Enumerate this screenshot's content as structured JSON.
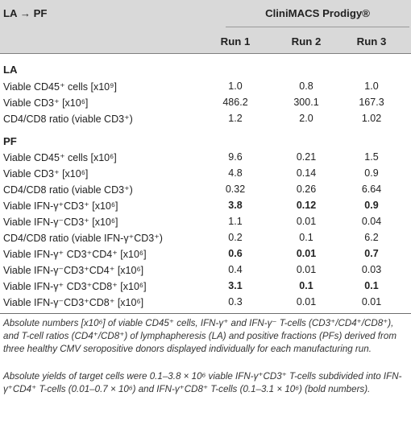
{
  "header": {
    "flow_label": "LA → PF",
    "device": "CliniMACS Prodigy®",
    "runs": [
      "Run 1",
      "Run 2",
      "Run 3"
    ]
  },
  "sections": [
    {
      "name": "LA",
      "rows": [
        {
          "label": "Viable CD45⁺ cells [x10⁹]",
          "values": [
            "1.0",
            "0.8",
            "1.0"
          ],
          "bold": false
        },
        {
          "label": "Viable CD3⁺ [x10⁶]",
          "values": [
            "486.2",
            "300.1",
            "167.3"
          ],
          "bold": false
        },
        {
          "label": "CD4/CD8 ratio (viable CD3⁺)",
          "values": [
            "1.2",
            "2.0",
            "1.02"
          ],
          "bold": false
        }
      ]
    },
    {
      "name": "PF",
      "rows": [
        {
          "label": "Viable CD45⁺ cells [x10⁶]",
          "values": [
            "9.6",
            "0.21",
            "1.5"
          ],
          "bold": false
        },
        {
          "label": "Viable CD3⁺ [x10⁶]",
          "values": [
            "4.8",
            "0.14",
            "0.9"
          ],
          "bold": false
        },
        {
          "label": "CD4/CD8 ratio (viable CD3⁺)",
          "values": [
            "0.32",
            "0.26",
            "6.64"
          ],
          "bold": false
        },
        {
          "label": "Viable IFN-γ⁺CD3⁺ [x10⁶]",
          "values": [
            "3.8",
            "0.12",
            "0.9"
          ],
          "bold": true
        },
        {
          "label": "Viable IFN-γ⁻CD3⁺ [x10⁶]",
          "values": [
            "1.1",
            "0.01",
            "0.04"
          ],
          "bold": false
        },
        {
          "label": "CD4/CD8 ratio (viable IFN-γ⁺CD3⁺)",
          "values": [
            "0.2",
            "0.1",
            "6.2"
          ],
          "bold": false
        },
        {
          "label": "Viable IFN-γ⁺ CD3⁺CD4⁺ [x10⁶]",
          "values": [
            "0.6",
            "0.01",
            "0.7"
          ],
          "bold": true
        },
        {
          "label": "Viable IFN-γ⁻CD3⁺CD4⁺ [x10⁶]",
          "values": [
            "0.4",
            "0.01",
            "0.03"
          ],
          "bold": false
        },
        {
          "label": "Viable IFN-γ⁺ CD3⁺CD8⁺ [x10⁶]",
          "values": [
            "3.1",
            "0.1",
            "0.1"
          ],
          "bold": true
        },
        {
          "label": "Viable IFN-γ⁻CD3⁺CD8⁺ [x10⁶]",
          "values": [
            "0.3",
            "0.01",
            "0.01"
          ],
          "bold": false
        }
      ]
    }
  ],
  "footnotes": [
    "Absolute numbers [x10⁶] of viable CD45⁺ cells, IFN-γ⁺ and IFN-γ⁻ T-cells (CD3⁺/CD4⁺/CD8⁺), and T-cell ratios (CD4⁺/CD8⁺) of lymphapheresis (LA) and positive fractions (PFs) derived from three healthy CMV seropositive donors displayed individually for each manufacturing run.",
    "Absolute yields of target cells were 0.1–3.8 × 10⁶ viable IFN-γ⁺CD3⁺ T-cells subdivided into IFN-γ⁺CD4⁺ T-cells (0.01–0.7 × 10⁶) and IFN-γ⁺CD8⁺ T-cells (0.1–3.1 × 10⁶) (bold numbers)."
  ]
}
